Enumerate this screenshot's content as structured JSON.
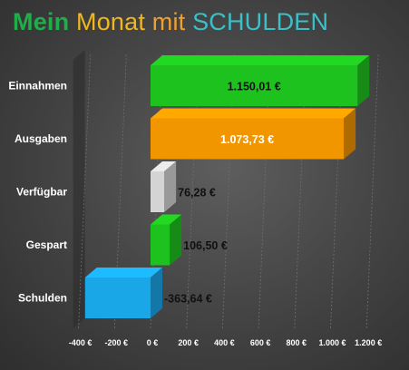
{
  "title_parts": [
    "Mein",
    "Monat",
    "mit",
    "SCHULDEN"
  ],
  "title_colors": [
    "#1fae4a",
    "#f0b820",
    "#f0a030",
    "#3cc0c8"
  ],
  "chart_data": {
    "type": "bar",
    "orientation": "horizontal",
    "title": "Mein Monat mit SCHULDEN",
    "categories": [
      "Einnahmen",
      "Ausgaben",
      "Verfügbar",
      "Gespart",
      "Schulden"
    ],
    "values": [
      1150.01,
      1073.73,
      76.28,
      106.5,
      -363.64
    ],
    "value_labels": [
      "1.150,01 €",
      "1.073,73 €",
      "76,28 €",
      "106,50 €",
      "-363,64 €"
    ],
    "bar_colors": [
      "#1ec21e",
      "#f29600",
      "#d4d4d4",
      "#1ec21e",
      "#1aa7e8"
    ],
    "xlim": [
      -400,
      1200
    ],
    "x_ticks": [
      -400,
      -200,
      0,
      200,
      400,
      600,
      800,
      1000,
      1200
    ],
    "x_tick_labels": [
      "-400 €",
      "-200 €",
      "0 €",
      "200 €",
      "400 €",
      "600 €",
      "800 €",
      "1.000 €",
      "1.200 €"
    ],
    "grid": true,
    "legend": "none",
    "style": "3d"
  }
}
